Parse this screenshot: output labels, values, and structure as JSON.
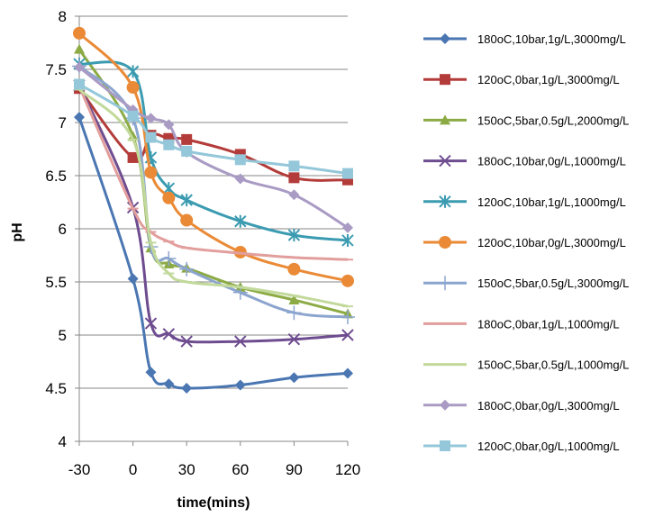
{
  "chart_data": {
    "type": "line",
    "title": "",
    "xlabel": "time(mins)",
    "ylabel": "pH",
    "x_ticks": [
      "-30",
      "0",
      "30",
      "60",
      "90",
      "120"
    ],
    "y_ticks": [
      "4",
      "4.5",
      "5",
      "5.5",
      "6",
      "6.5",
      "7",
      "7.5",
      "8"
    ],
    "xlim": [
      -30,
      120
    ],
    "ylim": [
      4,
      8
    ],
    "grid": "horizontal",
    "legend_position": "right",
    "x": [
      -30,
      0,
      10,
      20,
      30,
      60,
      90,
      120
    ],
    "series": [
      {
        "name": "180oC,10bar,1g/L,3000mg/L",
        "color": "#4a76b2",
        "marker": "diamond",
        "values": [
          7.05,
          5.53,
          4.65,
          4.54,
          4.5,
          4.53,
          4.6,
          4.64
        ]
      },
      {
        "name": "120oC,0bar,1g/L,3000mg/L",
        "color": "#b33c3a",
        "marker": "square",
        "values": [
          7.32,
          6.67,
          6.88,
          6.85,
          6.84,
          6.7,
          6.48,
          6.46
        ]
      },
      {
        "name": "150oC,5bar,0.5g/L,2000mg/L",
        "color": "#8cab45",
        "marker": "triangle",
        "values": [
          7.69,
          6.87,
          5.82,
          5.67,
          5.63,
          5.45,
          5.33,
          5.2
        ]
      },
      {
        "name": "180oC,10bar,0g/L,1000mg/L",
        "color": "#6e4c8f",
        "marker": "x",
        "values": [
          7.35,
          6.2,
          5.11,
          5.01,
          4.94,
          4.94,
          4.96,
          5.0
        ]
      },
      {
        "name": "120oC,10bar,1g/L,1000mg/L",
        "color": "#3b9bb1",
        "marker": "star",
        "values": [
          7.55,
          7.48,
          6.67,
          6.38,
          6.27,
          6.07,
          5.94,
          5.89
        ]
      },
      {
        "name": "120oC,10bar,0g/L,3000mg/L",
        "color": "#ea8a36",
        "marker": "circle",
        "values": [
          7.84,
          7.33,
          6.53,
          6.29,
          6.08,
          5.78,
          5.62,
          5.51
        ]
      },
      {
        "name": "150oC,5bar,0.5g/L,3000mg/L",
        "color": "#8ca5cf",
        "marker": "plus",
        "values": [
          7.53,
          7.04,
          5.83,
          5.72,
          5.62,
          5.4,
          5.21,
          5.17
        ]
      },
      {
        "name": "180oC,0bar,1g/L,1000mg/L",
        "color": "#e19e9c",
        "marker": "dash",
        "values": [
          7.34,
          6.19,
          5.97,
          5.88,
          5.82,
          5.77,
          5.73,
          5.71
        ]
      },
      {
        "name": "150oC,5bar,0.5g/L,1000mg/L",
        "color": "#c2d99b",
        "marker": "dash",
        "values": [
          7.31,
          6.84,
          5.87,
          5.58,
          5.5,
          5.45,
          5.37,
          5.27
        ]
      },
      {
        "name": "180oC,0bar,0g/L,3000mg/L",
        "color": "#a99bc4",
        "marker": "diamond",
        "values": [
          7.52,
          7.12,
          7.04,
          6.98,
          6.72,
          6.47,
          6.32,
          6.01
        ]
      },
      {
        "name": "120oC,0bar,0g/L,1000mg/L",
        "color": "#93c7d9",
        "marker": "square",
        "values": [
          7.36,
          7.06,
          6.86,
          6.79,
          6.73,
          6.65,
          6.59,
          6.52
        ]
      }
    ]
  }
}
